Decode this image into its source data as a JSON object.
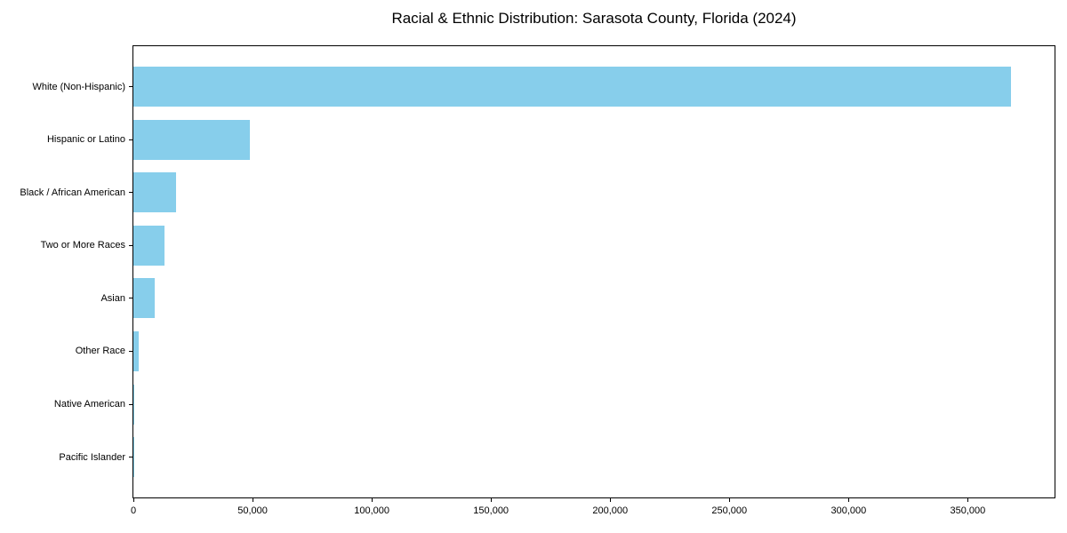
{
  "chart_data": {
    "type": "bar",
    "orientation": "horizontal",
    "title": "Racial & Ethnic Distribution: Sarasota County, Florida (2024)",
    "categories": [
      "White (Non-Hispanic)",
      "Hispanic or Latino",
      "Black / African American",
      "Two or More Races",
      "Asian",
      "Other Race",
      "Native American",
      "Pacific Islander"
    ],
    "values": [
      368000,
      48800,
      17900,
      13100,
      8800,
      2300,
      400,
      150
    ],
    "xlabel": "",
    "ylabel": "",
    "xlim": [
      0,
      386400
    ],
    "x_ticks": [
      0,
      50000,
      100000,
      150000,
      200000,
      250000,
      300000,
      350000
    ],
    "x_tick_labels": [
      "0",
      "50,000",
      "100,000",
      "150,000",
      "200,000",
      "250,000",
      "300,000",
      "350,000"
    ],
    "bar_color": "#87CEEB",
    "axis_color": "#000000",
    "grid": false,
    "legend": null
  }
}
